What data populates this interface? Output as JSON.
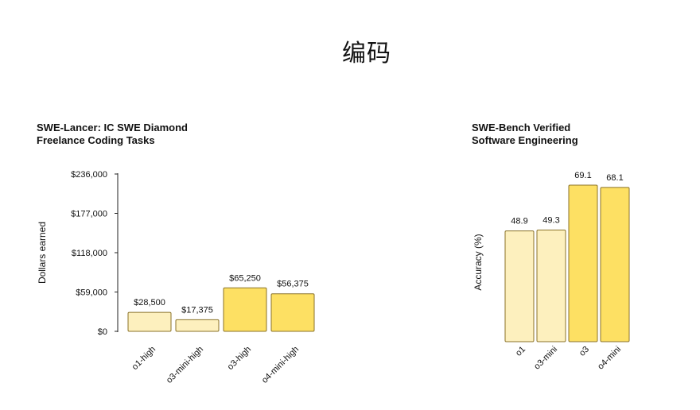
{
  "page": {
    "title": "编码"
  },
  "colors": {
    "light_bar": "#fdf0be",
    "bright_bar": "#fde063",
    "bar_stroke": "#8a7228",
    "axis": "#222222"
  },
  "chart_data": [
    {
      "type": "bar",
      "title_lines": [
        "SWE-Lancer: IC SWE Diamond",
        "Freelance Coding Tasks"
      ],
      "ylabel": "Dollars earned",
      "xlabel": "",
      "ylim": [
        0,
        236000
      ],
      "yticks": [
        0,
        59000,
        118000,
        177000,
        236000
      ],
      "ytick_labels": [
        "$0",
        "$59,000",
        "$118,000",
        "$177,000",
        "$236,000"
      ],
      "categories": [
        "o1-high",
        "o3-mini-high",
        "o3-high",
        "o4-mini-high"
      ],
      "values": [
        28500,
        17375,
        65250,
        56375
      ],
      "value_labels": [
        "$28,500",
        "$17,375",
        "$65,250",
        "$56,375"
      ],
      "bar_color_roles": [
        "light",
        "light",
        "bright",
        "bright"
      ],
      "grid": false
    },
    {
      "type": "bar",
      "title_lines": [
        "SWE-Bench Verified",
        "Software Engineering"
      ],
      "ylabel": "Accuracy (%)",
      "xlabel": "",
      "ylim": [
        0,
        69.1
      ],
      "categories": [
        "o1",
        "o3-mini",
        "o3",
        "o4-mini"
      ],
      "values": [
        48.9,
        49.3,
        69.1,
        68.1
      ],
      "value_labels": [
        "48.9",
        "49.3",
        "69.1",
        "68.1"
      ],
      "bar_color_roles": [
        "light",
        "light",
        "bright",
        "bright"
      ],
      "grid": false
    }
  ]
}
